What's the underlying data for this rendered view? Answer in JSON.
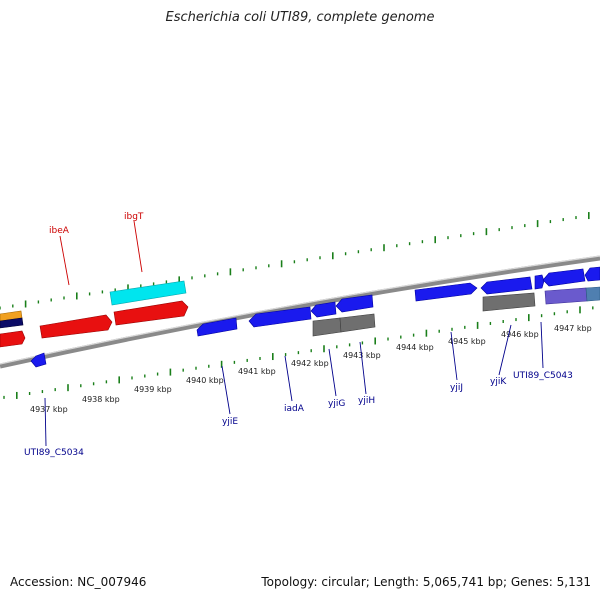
{
  "title": "Escherichia coli UTI89, complete genome",
  "footer": {
    "accession": "Accession: NC_007946",
    "summary": "Topology: circular; Length: 5,065,741 bp; Genes: 5,131"
  },
  "colors": {
    "background": "#ffffff",
    "backbone": "#8a8a8a",
    "tick": "#1a7f1a",
    "label_red": "#cc0000",
    "label_blue": "#00008b",
    "gene_red": "#e81010",
    "gene_cyan": "#00e5ee",
    "gene_blue": "#1a1aee",
    "gene_gray": "#6f6f6f",
    "gene_navy": "#0b0b66",
    "gene_orange": "#f0a020",
    "gene_slate": "#6a5acd",
    "gene_steel": "#4f7fb0"
  },
  "scale": {
    "unit": "kbp",
    "labels": [
      "4937 kbp",
      "4938 kbp",
      "4939 kbp",
      "4940 kbp",
      "4941 kbp",
      "4942 kbp",
      "4943 kbp",
      "4944 kbp",
      "4945 kbp",
      "4946 kbp",
      "4947 kbp"
    ]
  },
  "gene_labels": {
    "ibeA": "ibeA",
    "ibgT": "ibgT",
    "UTI89_C5034": "UTI89_C5034",
    "yjiE": "yjiE",
    "iadA": "iadA",
    "yjiG": "yjiG",
    "yjiH": "yjiH",
    "yjiJ": "yjiJ",
    "yjiK": "yjiK",
    "UTI89_C5043": "UTI89_C5043"
  }
}
